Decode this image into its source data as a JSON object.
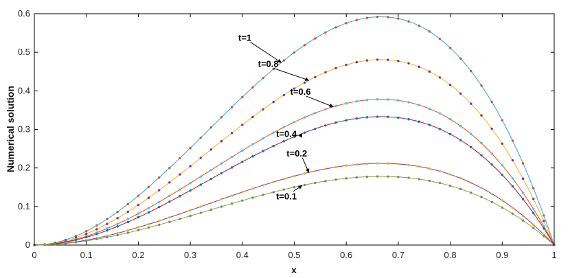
{
  "chart_data": {
    "type": "line",
    "xlabel": "x",
    "ylabel": "Numerical solution",
    "xlim": [
      0,
      1
    ],
    "ylim": [
      0,
      0.6
    ],
    "xticks": [
      "0",
      "0.1",
      "0.2",
      "0.3",
      "0.4",
      "0.5",
      "0.6",
      "0.7",
      "0.8",
      "0.9",
      "1"
    ],
    "yticks": [
      "0",
      "0.1",
      "0.2",
      "0.3",
      "0.4",
      "0.5",
      "0.6"
    ],
    "grid": false,
    "legend": "none",
    "line_shape": "A x^2 (1 - x), peak near x = 0.667",
    "series": [
      {
        "label": "t=1",
        "peak": 0.592,
        "line_color": "#3a9ad9",
        "marker_color": "#d95319"
      },
      {
        "label": "t=0.8",
        "peak": 0.481,
        "line_color": "#edb120",
        "marker_color": "#7e2f8e"
      },
      {
        "label": "t=0.6",
        "peak": 0.378,
        "line_color": "#d95319",
        "marker_color": "#4dbeee"
      },
      {
        "label": "t=0.4",
        "peak": 0.333,
        "line_color": "#a2142f",
        "marker_color": "#0072bd"
      },
      {
        "label": "t=0.2",
        "peak": 0.212,
        "line_color": "#7e2f8e",
        "marker_color": "#edb120"
      },
      {
        "label": "t=0.1",
        "peak": 0.178,
        "line_color": "#77ac30",
        "marker_color": "#808080"
      }
    ]
  }
}
